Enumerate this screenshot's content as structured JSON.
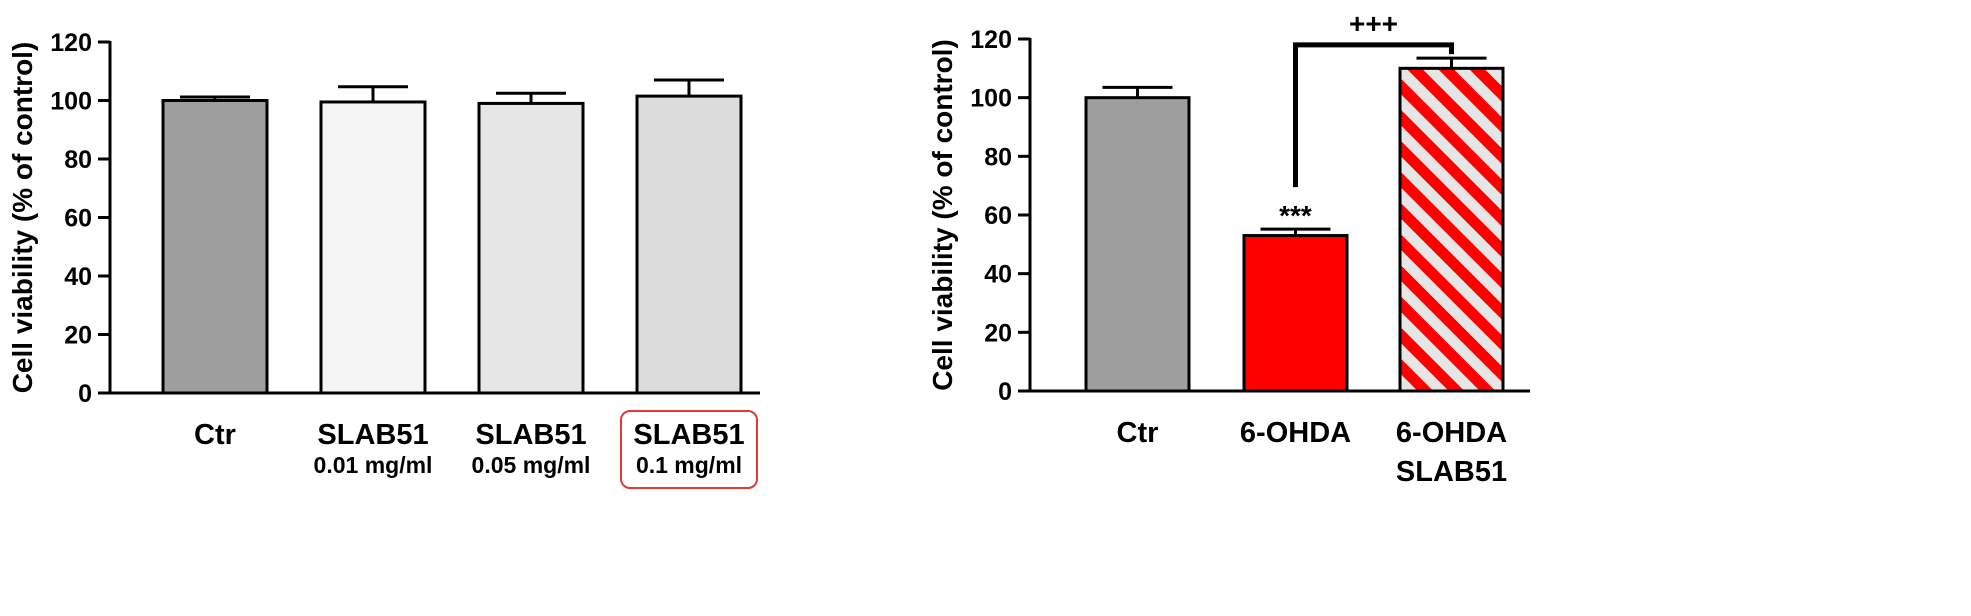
{
  "chart_data": [
    {
      "type": "bar",
      "ylabel": "Cell viability (% of control)",
      "ylim": [
        0,
        120
      ],
      "yticks": [
        0,
        20,
        40,
        60,
        80,
        100,
        120
      ],
      "categories": [
        {
          "label": "Ctr",
          "sublabel": ""
        },
        {
          "label": "SLAB51",
          "sublabel": "0.01 mg/ml"
        },
        {
          "label": "SLAB51",
          "sublabel": "0.05 mg/ml"
        },
        {
          "label": "SLAB51",
          "sublabel": "0.1 mg/ml",
          "highlighted": true
        }
      ],
      "values": [
        100,
        99.5,
        99,
        101.5
      ],
      "errors": [
        1.2,
        5.2,
        3.5,
        5.5
      ],
      "fills": [
        "#9e9e9e",
        "#f5f5f5",
        "#e6e6e6",
        "#dcdcdc"
      ],
      "highlight_color": "#e53935"
    },
    {
      "type": "bar",
      "ylabel": "Cell viability (% of control)",
      "ylim": [
        0,
        120
      ],
      "yticks": [
        0,
        20,
        40,
        60,
        80,
        100,
        120
      ],
      "categories": [
        {
          "label": "Ctr",
          "sublabel": ""
        },
        {
          "label": "6-OHDA",
          "sublabel": ""
        },
        {
          "label": "6-OHDA",
          "sublabel": "SLAB51"
        }
      ],
      "values": [
        100,
        53,
        110
      ],
      "errors": [
        3.5,
        2.2,
        3.5
      ],
      "fills": [
        "#9e9e9e",
        "#ff0000",
        "hatch-red"
      ],
      "annotations": [
        {
          "bar_index": 1,
          "text": "***"
        }
      ],
      "bracket": {
        "from": 1,
        "to": 2,
        "text": "+++",
        "y": 118
      }
    }
  ]
}
